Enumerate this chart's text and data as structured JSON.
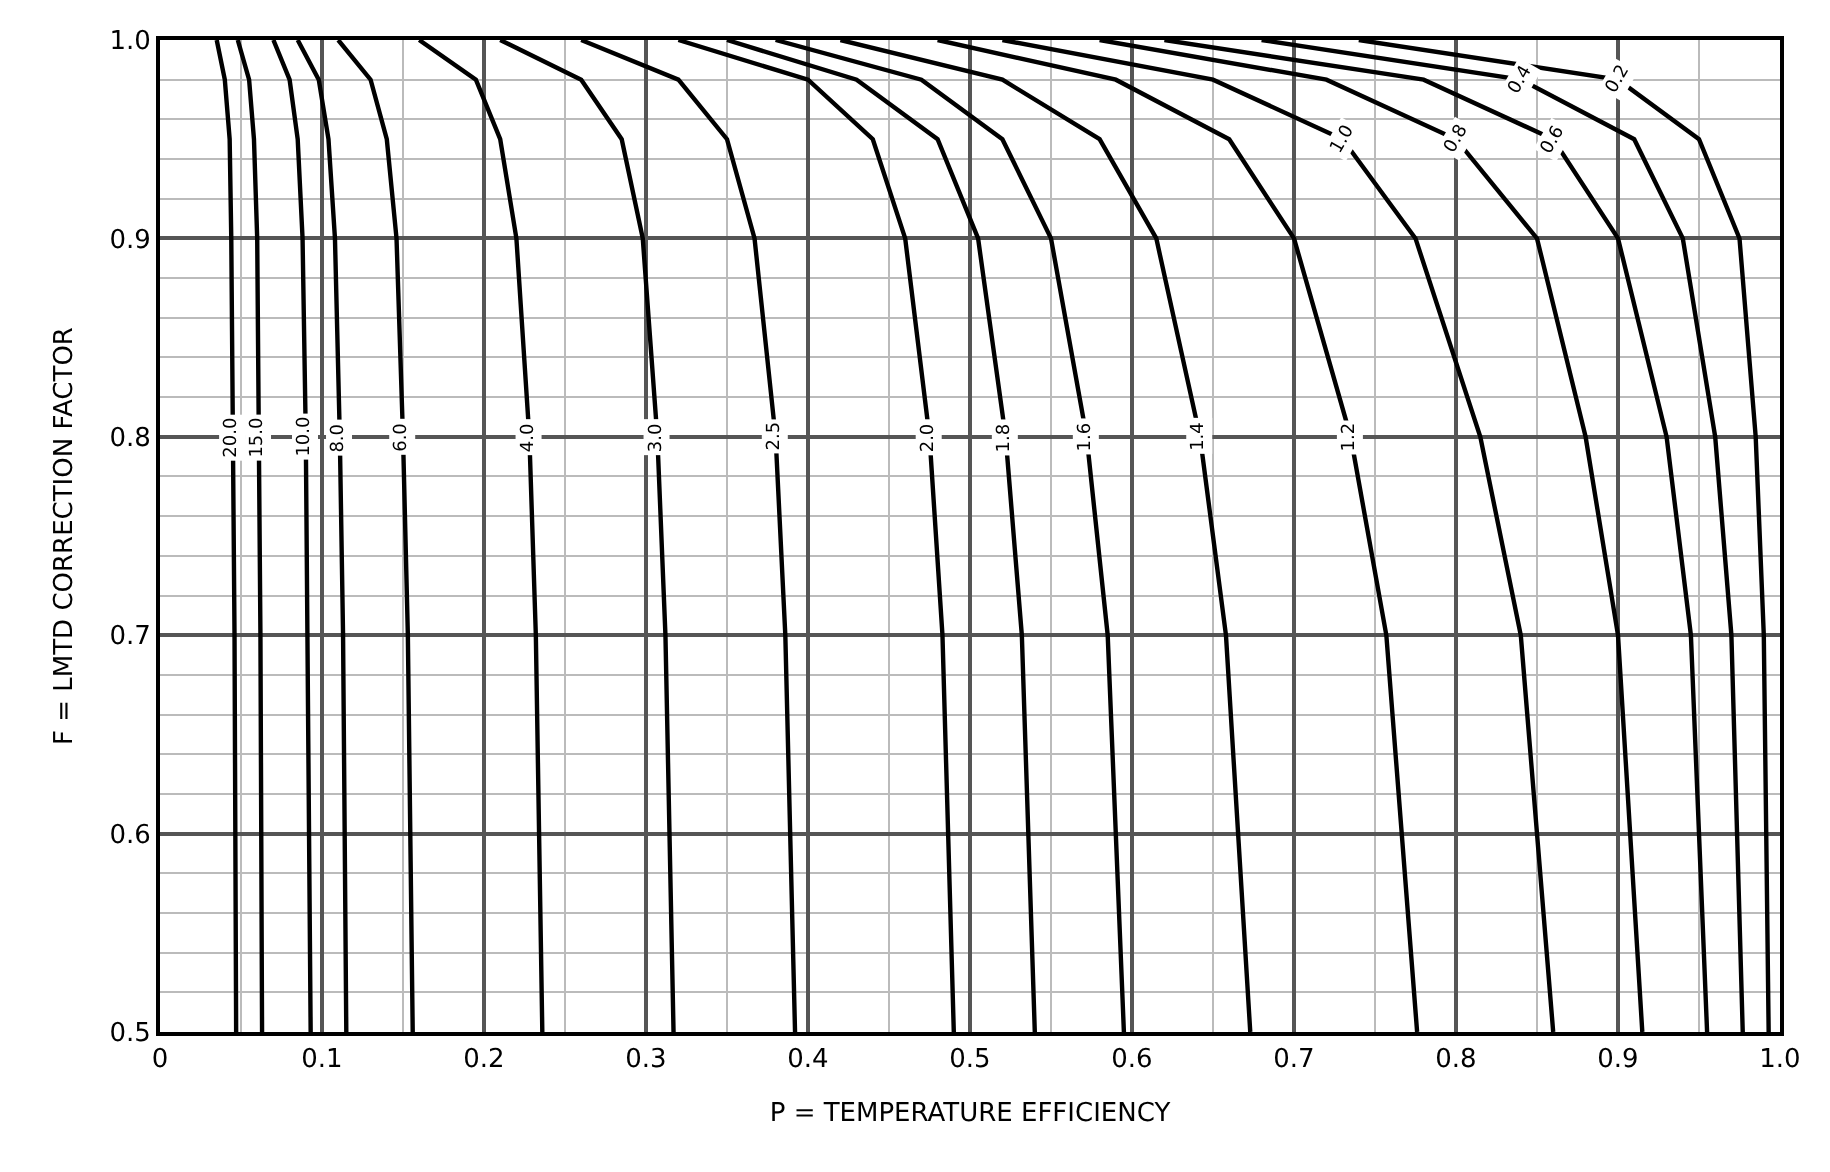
{
  "chart_data": {
    "type": "line",
    "xlabel": "P = TEMPERATURE EFFICIENCY",
    "ylabel": "F = LMTD CORRECTION FACTOR",
    "xlim": [
      0,
      1
    ],
    "ylim": [
      0.5,
      1.0
    ],
    "xticks": [
      0,
      0.1,
      0.2,
      0.3,
      0.4,
      0.5,
      0.6,
      0.7,
      0.8,
      0.9,
      {
        "value": 1,
        "label": "1.0"
      }
    ],
    "yticks": [
      0.5,
      0.6,
      0.7,
      0.8,
      0.9,
      {
        "value": 1,
        "label": "1.0"
      }
    ],
    "grid": true,
    "legend": false,
    "marker": "none",
    "line_style": "solid",
    "series": [
      {
        "name": "20.0",
        "color": "#000000",
        "x": [
          0.035,
          0.04,
          0.043,
          0.044,
          0.045,
          0.046,
          0.047
        ],
        "values": [
          1.0,
          0.98,
          0.95,
          0.9,
          0.8,
          0.7,
          0.5
        ]
      },
      {
        "name": "15.0",
        "color": "#000000",
        "x": [
          0.048,
          0.055,
          0.058,
          0.06,
          0.061,
          0.062,
          0.063
        ],
        "values": [
          1.0,
          0.98,
          0.95,
          0.9,
          0.8,
          0.7,
          0.5
        ]
      },
      {
        "name": "10.0",
        "color": "#000000",
        "x": [
          0.07,
          0.08,
          0.085,
          0.088,
          0.09,
          0.091,
          0.093
        ],
        "values": [
          1.0,
          0.98,
          0.95,
          0.9,
          0.8,
          0.7,
          0.5
        ]
      },
      {
        "name": "8.0",
        "color": "#000000",
        "x": [
          0.085,
          0.098,
          0.104,
          0.108,
          0.111,
          0.113,
          0.115
        ],
        "values": [
          1.0,
          0.98,
          0.95,
          0.9,
          0.8,
          0.7,
          0.5
        ]
      },
      {
        "name": "6.0",
        "color": "#000000",
        "x": [
          0.11,
          0.13,
          0.14,
          0.146,
          0.15,
          0.153,
          0.156
        ],
        "values": [
          1.0,
          0.98,
          0.95,
          0.9,
          0.8,
          0.7,
          0.5
        ]
      },
      {
        "name": "4.0",
        "color": "#000000",
        "x": [
          0.16,
          0.195,
          0.21,
          0.22,
          0.228,
          0.232,
          0.236
        ],
        "values": [
          1.0,
          0.98,
          0.95,
          0.9,
          0.8,
          0.7,
          0.5
        ]
      },
      {
        "name": "3.0",
        "color": "#000000",
        "x": [
          0.21,
          0.26,
          0.285,
          0.298,
          0.307,
          0.312,
          0.317
        ],
        "values": [
          1.0,
          0.98,
          0.95,
          0.9,
          0.8,
          0.7,
          0.5
        ]
      },
      {
        "name": "2.5",
        "color": "#000000",
        "x": [
          0.26,
          0.32,
          0.35,
          0.367,
          0.38,
          0.386,
          0.392
        ],
        "values": [
          1.0,
          0.98,
          0.95,
          0.9,
          0.8,
          0.7,
          0.5
        ]
      },
      {
        "name": "2.0",
        "color": "#000000",
        "x": [
          0.32,
          0.4,
          0.44,
          0.46,
          0.475,
          0.483,
          0.49
        ],
        "values": [
          1.0,
          0.98,
          0.95,
          0.9,
          0.8,
          0.7,
          0.5
        ]
      },
      {
        "name": "1.8",
        "color": "#000000",
        "x": [
          0.35,
          0.43,
          0.48,
          0.505,
          0.522,
          0.532,
          0.54
        ],
        "values": [
          1.0,
          0.98,
          0.95,
          0.9,
          0.8,
          0.7,
          0.5
        ]
      },
      {
        "name": "1.6",
        "color": "#000000",
        "x": [
          0.38,
          0.47,
          0.52,
          0.55,
          0.572,
          0.585,
          0.595
        ],
        "values": [
          1.0,
          0.98,
          0.95,
          0.9,
          0.8,
          0.7,
          0.5
        ]
      },
      {
        "name": "1.4",
        "color": "#000000",
        "x": [
          0.42,
          0.52,
          0.58,
          0.615,
          0.642,
          0.658,
          0.673
        ],
        "values": [
          1.0,
          0.98,
          0.95,
          0.9,
          0.8,
          0.7,
          0.5
        ]
      },
      {
        "name": "1.2",
        "color": "#000000",
        "x": [
          0.48,
          0.59,
          0.66,
          0.7,
          0.735,
          0.757,
          0.776
        ],
        "values": [
          1.0,
          0.98,
          0.95,
          0.9,
          0.8,
          0.7,
          0.5
        ]
      },
      {
        "name": "1.0",
        "color": "#000000",
        "x": [
          0.52,
          0.65,
          0.73,
          0.775,
          0.815,
          0.84,
          0.86
        ],
        "values": [
          1.0,
          0.98,
          0.95,
          0.9,
          0.8,
          0.7,
          0.5
        ]
      },
      {
        "name": "0.8",
        "color": "#000000",
        "x": [
          0.58,
          0.72,
          0.8,
          0.85,
          0.88,
          0.9,
          0.915
        ],
        "values": [
          1.0,
          0.98,
          0.95,
          0.9,
          0.8,
          0.7,
          0.5
        ]
      },
      {
        "name": "0.6",
        "color": "#000000",
        "x": [
          0.62,
          0.78,
          0.86,
          0.9,
          0.93,
          0.945,
          0.955
        ],
        "values": [
          1.0,
          0.98,
          0.95,
          0.9,
          0.8,
          0.7,
          0.5
        ]
      },
      {
        "name": "0.4",
        "color": "#000000",
        "x": [
          0.68,
          0.84,
          0.91,
          0.94,
          0.96,
          0.97,
          0.977
        ],
        "values": [
          1.0,
          0.98,
          0.95,
          0.9,
          0.8,
          0.7,
          0.5
        ]
      },
      {
        "name": "0.2",
        "color": "#000000",
        "x": [
          0.74,
          0.9,
          0.95,
          0.975,
          0.985,
          0.99,
          0.993
        ],
        "values": [
          1.0,
          0.98,
          0.95,
          0.9,
          0.8,
          0.7,
          0.5
        ]
      }
    ]
  }
}
